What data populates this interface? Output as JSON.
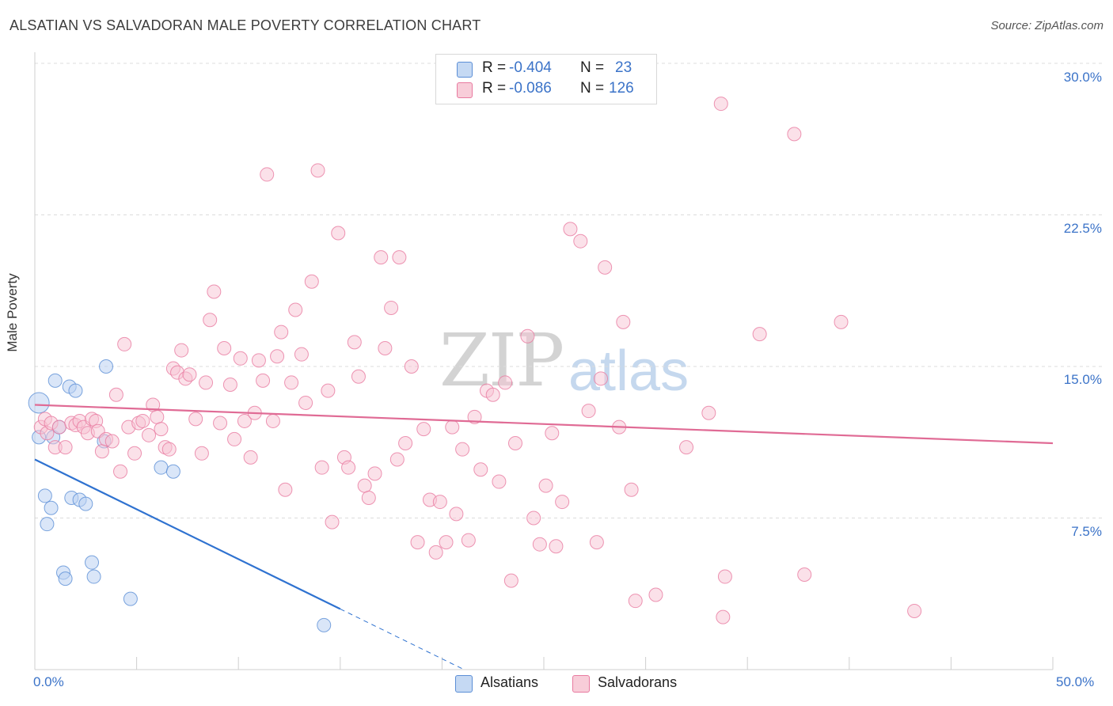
{
  "title": "ALSATIAN VS SALVADORAN MALE POVERTY CORRELATION CHART",
  "source": "Source: ZipAtlas.com",
  "watermark": {
    "zip": "ZIP",
    "atlas": "atlas"
  },
  "legend": {
    "rows": [
      {
        "r_label": "R =",
        "r_value": "-0.404",
        "n_label": "N =",
        "n_value": "23",
        "color": "#5b8ed6"
      },
      {
        "r_label": "R =",
        "r_value": "-0.086",
        "n_label": "N =",
        "n_value": "126",
        "color": "#e87aa0"
      }
    ]
  },
  "bottom_legend": [
    {
      "label": "Alsatians",
      "color": "#5b8ed6"
    },
    {
      "label": "Salvadorans",
      "color": "#e87aa0"
    }
  ],
  "chart_data": {
    "type": "scatter",
    "title": "ALSATIAN VS SALVADORAN MALE POVERTY CORRELATION CHART",
    "xlabel": "",
    "ylabel": "Male Poverty",
    "xlim": [
      0,
      50
    ],
    "ylim": [
      0,
      30
    ],
    "x_tick_labels": [
      "0.0%",
      "50.0%"
    ],
    "y_tick_labels": [
      "7.5%",
      "15.0%",
      "22.5%",
      "30.0%"
    ],
    "y_ticks": [
      7.5,
      15.0,
      22.5,
      30.0
    ],
    "grid": true,
    "legend_position": "top-center",
    "series": [
      {
        "name": "Alsatians",
        "color": "#5b8ed6",
        "trend": {
          "x0": 0,
          "y0": 10.4,
          "x1": 15.0,
          "y1": 3.0,
          "dash_to_x": 21.0
        },
        "points": [
          [
            0.2,
            13.2
          ],
          [
            0.2,
            11.5
          ],
          [
            0.5,
            8.6
          ],
          [
            0.6,
            7.2
          ],
          [
            0.8,
            8.0
          ],
          [
            0.9,
            11.5
          ],
          [
            1.0,
            14.3
          ],
          [
            1.2,
            12.0
          ],
          [
            1.4,
            4.8
          ],
          [
            1.5,
            4.5
          ],
          [
            1.7,
            14.0
          ],
          [
            1.8,
            8.5
          ],
          [
            2.0,
            13.8
          ],
          [
            2.2,
            8.4
          ],
          [
            2.5,
            8.2
          ],
          [
            2.8,
            5.3
          ],
          [
            2.9,
            4.6
          ],
          [
            3.4,
            11.3
          ],
          [
            3.5,
            15.0
          ],
          [
            4.7,
            3.5
          ],
          [
            6.2,
            10.0
          ],
          [
            6.8,
            9.8
          ],
          [
            14.2,
            2.2
          ]
        ]
      },
      {
        "name": "Salvadorans",
        "color": "#e87aa0",
        "trend": {
          "x0": 0,
          "y0": 13.1,
          "x1": 50,
          "y1": 11.2
        },
        "points": [
          [
            0.3,
            12.0
          ],
          [
            0.5,
            12.4
          ],
          [
            0.6,
            11.7
          ],
          [
            0.8,
            12.2
          ],
          [
            1.0,
            11.0
          ],
          [
            1.2,
            12.0
          ],
          [
            1.5,
            11.0
          ],
          [
            1.8,
            12.2
          ],
          [
            2.0,
            12.1
          ],
          [
            2.2,
            12.3
          ],
          [
            2.4,
            12.0
          ],
          [
            2.6,
            11.7
          ],
          [
            2.8,
            12.4
          ],
          [
            3.0,
            12.3
          ],
          [
            3.1,
            11.8
          ],
          [
            3.3,
            10.8
          ],
          [
            3.5,
            11.4
          ],
          [
            3.8,
            11.3
          ],
          [
            4.0,
            13.6
          ],
          [
            4.2,
            9.8
          ],
          [
            4.4,
            16.1
          ],
          [
            4.6,
            12.0
          ],
          [
            4.9,
            10.7
          ],
          [
            5.1,
            12.2
          ],
          [
            5.3,
            12.3
          ],
          [
            5.6,
            11.6
          ],
          [
            5.8,
            13.1
          ],
          [
            6.0,
            12.5
          ],
          [
            6.2,
            11.9
          ],
          [
            6.4,
            11.0
          ],
          [
            6.6,
            10.9
          ],
          [
            6.8,
            14.9
          ],
          [
            7.0,
            14.7
          ],
          [
            7.2,
            15.8
          ],
          [
            7.4,
            14.4
          ],
          [
            7.6,
            14.6
          ],
          [
            7.9,
            12.4
          ],
          [
            8.2,
            10.7
          ],
          [
            8.4,
            14.2
          ],
          [
            8.6,
            17.3
          ],
          [
            8.8,
            18.7
          ],
          [
            9.1,
            12.2
          ],
          [
            9.3,
            15.9
          ],
          [
            9.6,
            14.1
          ],
          [
            9.8,
            11.4
          ],
          [
            10.1,
            15.4
          ],
          [
            10.3,
            12.3
          ],
          [
            10.6,
            10.5
          ],
          [
            10.8,
            12.7
          ],
          [
            11.0,
            15.3
          ],
          [
            11.2,
            14.3
          ],
          [
            11.4,
            24.5
          ],
          [
            11.7,
            12.3
          ],
          [
            11.9,
            15.5
          ],
          [
            12.1,
            16.7
          ],
          [
            12.3,
            8.9
          ],
          [
            12.6,
            14.2
          ],
          [
            12.8,
            17.8
          ],
          [
            13.1,
            15.6
          ],
          [
            13.3,
            13.2
          ],
          [
            13.6,
            19.2
          ],
          [
            13.9,
            24.7
          ],
          [
            14.1,
            10.0
          ],
          [
            14.4,
            13.8
          ],
          [
            14.6,
            7.3
          ],
          [
            14.9,
            21.6
          ],
          [
            15.2,
            10.5
          ],
          [
            15.4,
            10.0
          ],
          [
            15.7,
            16.2
          ],
          [
            15.9,
            14.5
          ],
          [
            16.2,
            9.1
          ],
          [
            16.4,
            8.5
          ],
          [
            16.7,
            9.7
          ],
          [
            17.0,
            20.4
          ],
          [
            17.2,
            15.9
          ],
          [
            17.5,
            17.9
          ],
          [
            17.8,
            10.4
          ],
          [
            17.9,
            20.4
          ],
          [
            18.2,
            11.2
          ],
          [
            18.5,
            15.0
          ],
          [
            18.8,
            6.3
          ],
          [
            19.1,
            11.9
          ],
          [
            19.4,
            8.4
          ],
          [
            19.7,
            5.8
          ],
          [
            19.9,
            8.3
          ],
          [
            20.2,
            6.3
          ],
          [
            20.5,
            12.0
          ],
          [
            20.7,
            7.7
          ],
          [
            21.0,
            10.9
          ],
          [
            21.3,
            6.4
          ],
          [
            21.6,
            12.5
          ],
          [
            21.9,
            9.9
          ],
          [
            22.2,
            13.8
          ],
          [
            22.5,
            13.6
          ],
          [
            22.8,
            9.3
          ],
          [
            23.1,
            14.2
          ],
          [
            23.4,
            4.4
          ],
          [
            23.6,
            11.2
          ],
          [
            24.2,
            16.5
          ],
          [
            24.5,
            7.5
          ],
          [
            24.8,
            6.2
          ],
          [
            25.1,
            9.1
          ],
          [
            25.4,
            11.7
          ],
          [
            25.6,
            6.1
          ],
          [
            25.9,
            8.3
          ],
          [
            26.3,
            21.8
          ],
          [
            26.8,
            21.2
          ],
          [
            27.2,
            12.8
          ],
          [
            27.6,
            6.3
          ],
          [
            27.8,
            14.4
          ],
          [
            28.0,
            19.9
          ],
          [
            28.7,
            12.0
          ],
          [
            28.9,
            17.2
          ],
          [
            29.3,
            8.9
          ],
          [
            29.5,
            3.4
          ],
          [
            30.5,
            3.7
          ],
          [
            32.0,
            11.0
          ],
          [
            33.1,
            12.7
          ],
          [
            33.8,
            2.6
          ],
          [
            33.7,
            28.0
          ],
          [
            33.9,
            4.6
          ],
          [
            35.6,
            16.6
          ],
          [
            37.3,
            26.5
          ],
          [
            37.8,
            4.7
          ],
          [
            39.6,
            17.2
          ],
          [
            43.2,
            2.9
          ]
        ]
      }
    ]
  }
}
